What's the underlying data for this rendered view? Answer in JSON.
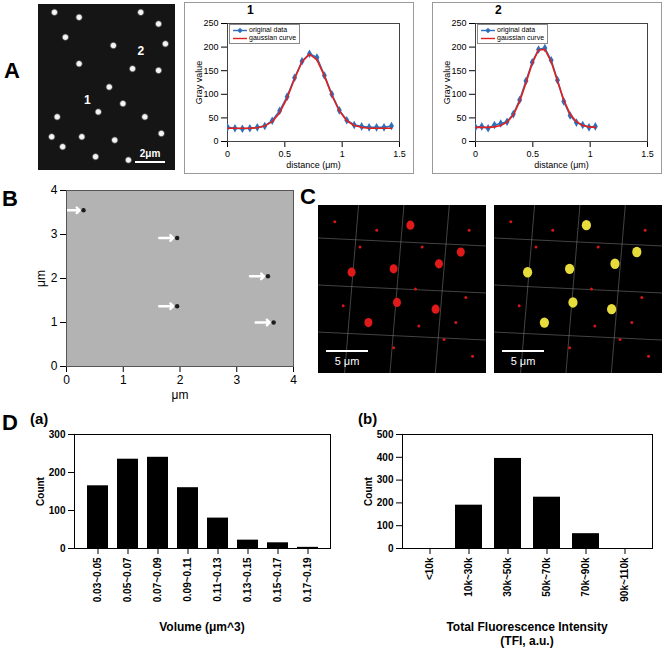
{
  "panels": [
    "A",
    "B",
    "C",
    "D"
  ],
  "chart_data": [
    {
      "type": "line",
      "title": "1",
      "x": [
        0,
        0.065,
        0.13,
        0.195,
        0.26,
        0.325,
        0.39,
        0.455,
        0.52,
        0.585,
        0.65,
        0.715,
        0.78,
        0.845,
        0.91,
        0.975,
        1.04,
        1.105,
        1.17,
        1.235,
        1.3,
        1.365,
        1.43
      ],
      "series": [
        {
          "name": "original data",
          "color": "#2f6eba",
          "marker": "diamond",
          "values": [
            30,
            28,
            27,
            28,
            30,
            33,
            44,
            65,
            95,
            135,
            170,
            186,
            178,
            140,
            100,
            66,
            45,
            35,
            32,
            30,
            30,
            30,
            33
          ]
        },
        {
          "name": "gaussian curve",
          "color": "#e3201b",
          "values": [
            28,
            28,
            28,
            28,
            29,
            33,
            42,
            61,
            92,
            133,
            169,
            185,
            173,
            139,
            98,
            65,
            44,
            34,
            30,
            28,
            28,
            28,
            28
          ]
        }
      ],
      "xlim": [
        0,
        1.5
      ],
      "xticks": [
        0,
        0.5,
        1,
        1.5
      ],
      "ylim": [
        0,
        250
      ],
      "yticks": [
        0,
        50,
        100,
        150,
        200,
        250
      ],
      "x_label": "distance (μm)",
      "y_label": "Gray value",
      "legend": "top-left"
    },
    {
      "type": "line",
      "title": "2",
      "x": [
        0,
        0.055,
        0.11,
        0.165,
        0.22,
        0.275,
        0.33,
        0.385,
        0.44,
        0.495,
        0.55,
        0.605,
        0.66,
        0.715,
        0.77,
        0.825,
        0.88,
        0.935,
        0.99,
        1.045
      ],
      "series": [
        {
          "name": "original data",
          "color": "#2f6eba",
          "marker": "diamond",
          "values": [
            30,
            32,
            28,
            35,
            38,
            42,
            58,
            88,
            128,
            168,
            195,
            198,
            172,
            130,
            85,
            55,
            40,
            35,
            30,
            32
          ]
        },
        {
          "name": "gaussian curve",
          "color": "#e3201b",
          "values": [
            30,
            30,
            30,
            31,
            34,
            41,
            56,
            85,
            124,
            166,
            194,
            195,
            169,
            128,
            88,
            58,
            42,
            34,
            31,
            30
          ]
        }
      ],
      "xlim": [
        0,
        1.5
      ],
      "xticks": [
        0,
        0.5,
        1,
        1.5
      ],
      "ylim": [
        0,
        250
      ],
      "yticks": [
        0,
        50,
        100,
        150,
        200,
        250
      ],
      "x_label": "distance (μm)",
      "y_label": "Gray value",
      "legend": "top-left"
    },
    {
      "type": "scatter",
      "x": [
        0.3,
        1.95,
        3.55,
        1.95,
        3.65
      ],
      "y": [
        3.55,
        2.92,
        2.05,
        1.37,
        1.0
      ],
      "color": "#1c1c1c",
      "marker": "circle",
      "xlim": [
        0,
        4
      ],
      "xticks": [
        0,
        1,
        2,
        3,
        4
      ],
      "ylim": [
        0,
        4
      ],
      "yticks": [
        0,
        1,
        2,
        3,
        4
      ],
      "x_label": "μm",
      "y_label": "μm"
    },
    {
      "type": "bar",
      "subtitle": "(a)",
      "categories": [
        "0.03~0.05",
        "0.05~0.07",
        "0.07~0.09",
        "0.09~0.11",
        "0.11~0.13",
        "0.13~0.15",
        "0.15~0.17",
        "0.17~0.19"
      ],
      "values": [
        165,
        235,
        240,
        160,
        80,
        22,
        15,
        3
      ],
      "color": "#000000",
      "ylim": [
        0,
        300
      ],
      "yticks": [
        0,
        100,
        200,
        300
      ],
      "x_label": "Volume (μm^3)",
      "y_label": "Count"
    },
    {
      "type": "bar",
      "subtitle": "(b)",
      "categories": [
        "<10k",
        "10k~30k",
        "30k~50k",
        "50k~70k",
        "70k~90k",
        "90k~110k"
      ],
      "values": [
        0,
        190,
        395,
        225,
        65,
        0
      ],
      "color": "#000000",
      "ylim": [
        0,
        500
      ],
      "yticks": [
        0,
        100,
        200,
        300,
        400,
        500
      ],
      "x_label": "Total Fluorescence Intensity (TFI, a.u.)",
      "y_label": "Count"
    }
  ],
  "images": [
    {
      "labels": [
        "1",
        "2"
      ],
      "scale_bar": "2μm"
    },
    {
      "scale_bar": "5 μm"
    },
    {
      "scale_bar": "5 μm"
    }
  ]
}
